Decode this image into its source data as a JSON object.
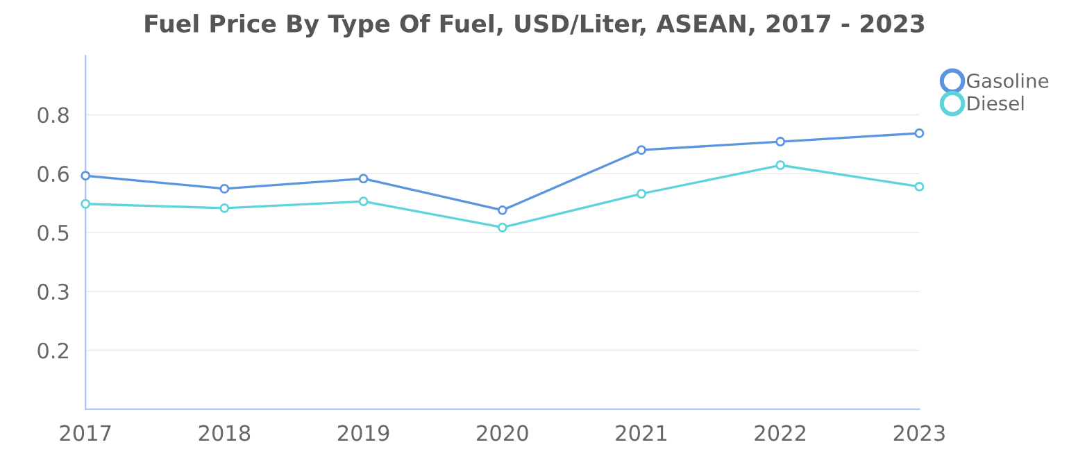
{
  "chart_data": {
    "type": "line",
    "title": "Fuel Price By Type Of Fuel, USD/Liter, ASEAN, 2017 - 2023",
    "x": [
      2017,
      2018,
      2019,
      2020,
      2021,
      2022,
      2023
    ],
    "series": [
      {
        "name": "Gasoline",
        "color": "#5b95e0",
        "values": [
          0.615,
          0.584,
          0.608,
          0.533,
          0.676,
          0.696,
          0.716
        ]
      },
      {
        "name": "Diesel",
        "color": "#5fd3dc",
        "values": [
          0.548,
          0.538,
          0.554,
          0.492,
          0.572,
          0.64,
          0.589
        ]
      }
    ],
    "xlim": [
      2017,
      2023
    ],
    "xticks": [
      2017,
      2018,
      2019,
      2020,
      2021,
      2022,
      2023
    ],
    "ylim": [
      0.06,
      0.9
    ],
    "yticks": [
      {
        "value": 0.2,
        "label": "0.2"
      },
      {
        "value": 0.34,
        "label": "0.3"
      },
      {
        "value": 0.48,
        "label": "0.5"
      },
      {
        "value": 0.62,
        "label": "0.6"
      },
      {
        "value": 0.76,
        "label": "0.8"
      }
    ],
    "grid": "y",
    "legend": "top right",
    "marker": "circle",
    "line_style": "solid"
  }
}
